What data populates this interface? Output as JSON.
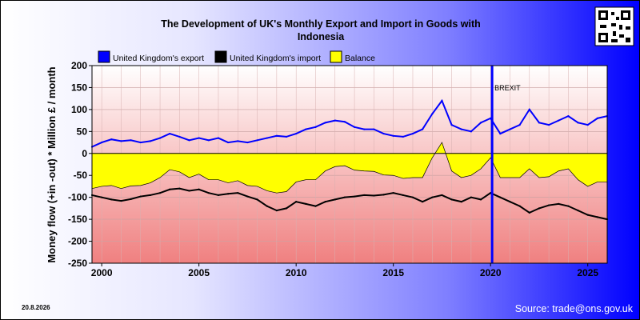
{
  "chart_data": {
    "type": "line",
    "title_line1": "The Development of UK's Monthly Export and Import in Goods with",
    "title_line2": "Indonesia",
    "ylabel": "Money flow (+in -out) * Million £ / month",
    "xlabel": "",
    "xlim": [
      1999.5,
      2026.0
    ],
    "ylim": [
      -250,
      200
    ],
    "x_ticks": [
      {
        "value": 2000,
        "label": "2000"
      },
      {
        "value": 2005,
        "label": "2005"
      },
      {
        "value": 2010,
        "label": "2010"
      },
      {
        "value": 2015,
        "label": "2015"
      },
      {
        "value": 2020,
        "label": "2020"
      },
      {
        "value": 2025,
        "label": "2025"
      }
    ],
    "y_ticks": [
      {
        "value": 200,
        "label": "200"
      },
      {
        "value": 150,
        "label": "150"
      },
      {
        "value": 100,
        "label": "100"
      },
      {
        "value": 50,
        "label": "50"
      },
      {
        "value": 0,
        "label": "0"
      },
      {
        "value": -50,
        "label": "-50"
      },
      {
        "value": -100,
        "label": "-100"
      },
      {
        "value": -150,
        "label": "-150"
      },
      {
        "value": -200,
        "label": "-200"
      },
      {
        "value": -250,
        "label": "-250"
      }
    ],
    "grid": true,
    "legend_position": "top-left",
    "annotation": {
      "label": "BREXIT",
      "x": 2020.08,
      "color": "#0000ff"
    },
    "series": [
      {
        "name": "United Kingdom's export",
        "color": "#0000ff"
      },
      {
        "name": "United Kingdom's import",
        "color": "#000000"
      },
      {
        "name": "Balance",
        "color": "#ffff00"
      }
    ],
    "x": [
      1999.5,
      2000,
      2000.5,
      2001,
      2001.5,
      2002,
      2002.5,
      2003,
      2003.5,
      2004,
      2004.5,
      2005,
      2005.5,
      2006,
      2006.5,
      2007,
      2007.5,
      2008,
      2008.5,
      2009,
      2009.5,
      2010,
      2010.5,
      2011,
      2011.5,
      2012,
      2012.5,
      2013,
      2013.5,
      2014,
      2014.5,
      2015,
      2015.5,
      2016,
      2016.5,
      2017,
      2017.5,
      2018,
      2018.5,
      2019,
      2019.5,
      2020,
      2020.5,
      2021,
      2021.5,
      2022,
      2022.5,
      2023,
      2023.5,
      2024,
      2024.5,
      2025,
      2025.5,
      2026
    ],
    "export": [
      15,
      25,
      32,
      28,
      30,
      25,
      28,
      35,
      45,
      38,
      30,
      35,
      30,
      35,
      25,
      28,
      25,
      30,
      35,
      40,
      38,
      45,
      55,
      60,
      70,
      75,
      72,
      60,
      55,
      55,
      45,
      40,
      38,
      45,
      55,
      90,
      120,
      65,
      55,
      50,
      70,
      80,
      45,
      55,
      65,
      100,
      70,
      65,
      75,
      85,
      70,
      65,
      80,
      85
    ],
    "import": [
      -95,
      -100,
      -105,
      -108,
      -104,
      -98,
      -95,
      -90,
      -82,
      -80,
      -85,
      -82,
      -90,
      -95,
      -92,
      -90,
      -98,
      -105,
      -120,
      -130,
      -125,
      -110,
      -115,
      -120,
      -110,
      -105,
      -100,
      -98,
      -95,
      -96,
      -94,
      -90,
      -95,
      -100,
      -110,
      -100,
      -95,
      -105,
      -110,
      -100,
      -105,
      -90,
      -100,
      -110,
      -120,
      -135,
      -125,
      -118,
      -115,
      -120,
      -130,
      -140,
      -145,
      -150
    ],
    "balance": [
      -80,
      -75,
      -73,
      -80,
      -74,
      -73,
      -67,
      -55,
      -37,
      -42,
      -55,
      -47,
      -60,
      -60,
      -67,
      -62,
      -73,
      -75,
      -85,
      -90,
      -87,
      -65,
      -60,
      -60,
      -40,
      -30,
      -28,
      -38,
      -40,
      -41,
      -49,
      -50,
      -57,
      -55,
      -55,
      -10,
      25,
      -40,
      -55,
      -50,
      -35,
      -10,
      -55,
      -55,
      -55,
      -35,
      -55,
      -53,
      -40,
      -35,
      -60,
      -75,
      -65,
      -65
    ]
  },
  "date_stamp": "20.8.2026",
  "source": "Source: trade@ons.gov.uk",
  "colors": {
    "export": "#0000ff",
    "import": "#000000",
    "balance_fill": "#ffff00",
    "plot_top": "#ffffff",
    "plot_bottom": "#f08080",
    "brexit_line": "#0000ff"
  },
  "qr_icon": "qr-code-icon"
}
